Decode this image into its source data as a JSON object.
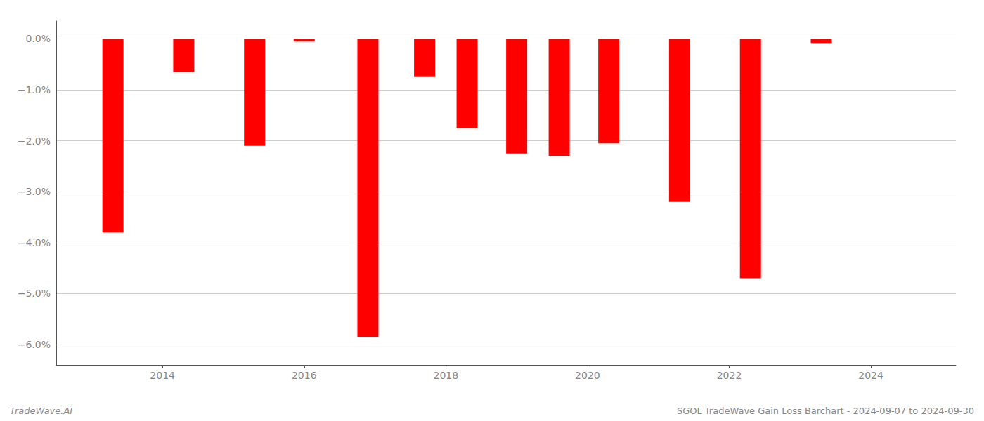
{
  "chart_data": {
    "type": "bar",
    "x": [
      2013.3,
      2014.3,
      2015.3,
      2016.0,
      2016.9,
      2017.7,
      2018.3,
      2019.0,
      2019.6,
      2020.3,
      2021.3,
      2022.3,
      2023.3
    ],
    "values": [
      -3.8,
      -0.65,
      -2.1,
      -0.05,
      -5.85,
      -0.75,
      -1.75,
      -2.25,
      -2.3,
      -2.05,
      -3.2,
      -4.7,
      -0.08
    ],
    "color": "#ff0000",
    "xlim": [
      2012.5,
      2025.2
    ],
    "xticks": [
      2014,
      2016,
      2018,
      2020,
      2022,
      2024
    ],
    "ylim": [
      -6.4,
      0.35
    ],
    "yticks": [
      {
        "value": 0.0,
        "label": "0.0%"
      },
      {
        "value": -1.0,
        "label": "−1.0%"
      },
      {
        "value": -2.0,
        "label": "−2.0%"
      },
      {
        "value": -3.0,
        "label": "−3.0%"
      },
      {
        "value": -4.0,
        "label": "−4.0%"
      },
      {
        "value": -5.0,
        "label": "−5.0%"
      },
      {
        "value": -6.0,
        "label": "−6.0%"
      }
    ],
    "grid": true,
    "annotations": [
      "TradeWave.AI",
      "SGOL TradeWave Gain Loss Barchart - 2024-09-07 to 2024-09-30"
    ]
  }
}
